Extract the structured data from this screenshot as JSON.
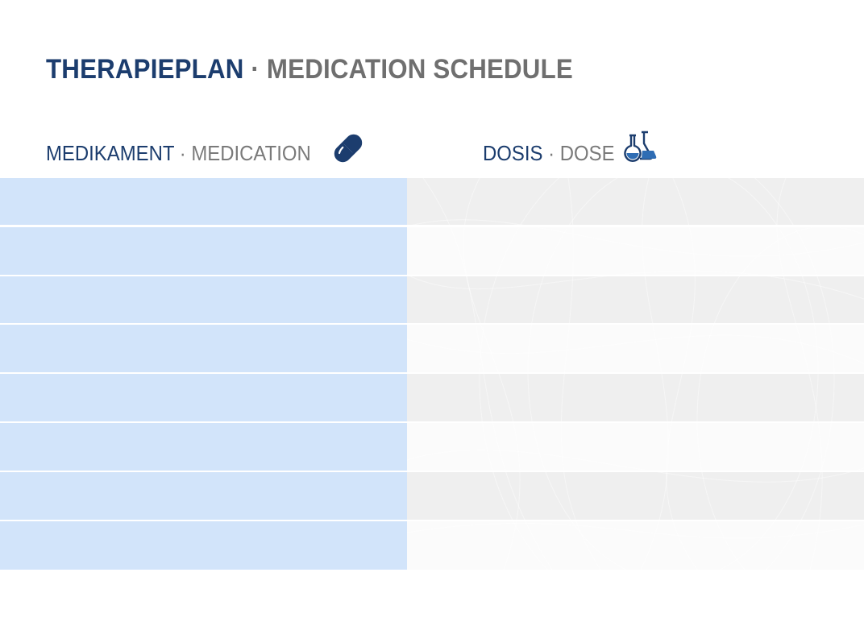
{
  "title": {
    "primary": "THERAPIEPLAN",
    "separator": "·",
    "secondary": "MEDICATION SCHEDULE"
  },
  "columns": {
    "medication": {
      "primary": "MEDIKAMENT",
      "separator": "·",
      "secondary": "MEDICATION",
      "icon": "pill-icon"
    },
    "dose": {
      "primary": "DOSIS",
      "separator": "·",
      "secondary": "DOSE",
      "icon": "flask-icon"
    }
  },
  "rows": [
    {
      "medication": "",
      "dose": ""
    },
    {
      "medication": "",
      "dose": ""
    },
    {
      "medication": "",
      "dose": ""
    },
    {
      "medication": "",
      "dose": ""
    },
    {
      "medication": "",
      "dose": ""
    },
    {
      "medication": "",
      "dose": ""
    },
    {
      "medication": "",
      "dose": ""
    },
    {
      "medication": "",
      "dose": ""
    }
  ],
  "colors": {
    "primary": "#1c3d6e",
    "secondary": "#6f6f6f",
    "medication_cell": "#d2e4fa",
    "dose_cell_dark": "#efefef",
    "dose_cell_light": "#fbfbfb",
    "icon_accent": "#2f6db4"
  }
}
